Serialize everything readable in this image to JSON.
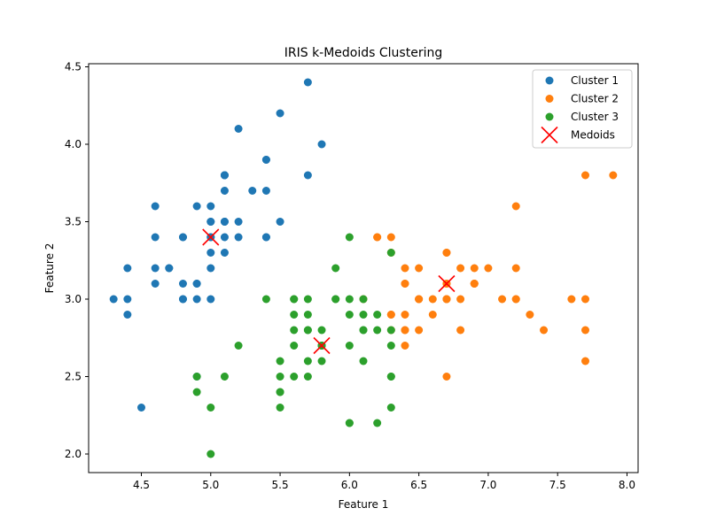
{
  "chart_data": {
    "type": "scatter",
    "title": "IRIS k-Medoids Clustering",
    "xlabel": "Feature 1",
    "ylabel": "Feature 2",
    "xlim": [
      4.12,
      8.08
    ],
    "ylim": [
      1.88,
      4.52
    ],
    "xticks": [
      "4.5",
      "5.0",
      "5.5",
      "6.0",
      "6.5",
      "7.0",
      "7.5",
      "8.0"
    ],
    "yticks": [
      "2.0",
      "2.5",
      "3.0",
      "3.5",
      "4.0",
      "4.5"
    ],
    "grid": false,
    "legend_position": "top-right",
    "series": [
      {
        "name": "Cluster 1",
        "color": "#1f77b4",
        "marker": "circle",
        "points": [
          [
            5.1,
            3.5
          ],
          [
            4.9,
            3.0
          ],
          [
            4.7,
            3.2
          ],
          [
            4.6,
            3.1
          ],
          [
            5.0,
            3.6
          ],
          [
            5.4,
            3.9
          ],
          [
            4.6,
            3.4
          ],
          [
            5.0,
            3.4
          ],
          [
            4.4,
            2.9
          ],
          [
            4.9,
            3.1
          ],
          [
            5.4,
            3.7
          ],
          [
            4.8,
            3.4
          ],
          [
            4.8,
            3.0
          ],
          [
            4.3,
            3.0
          ],
          [
            5.8,
            4.0
          ],
          [
            5.7,
            4.4
          ],
          [
            5.4,
            3.9
          ],
          [
            5.1,
            3.5
          ],
          [
            5.7,
            3.8
          ],
          [
            5.1,
            3.8
          ],
          [
            5.4,
            3.4
          ],
          [
            5.1,
            3.7
          ],
          [
            4.6,
            3.6
          ],
          [
            5.1,
            3.3
          ],
          [
            4.8,
            3.4
          ],
          [
            5.0,
            3.0
          ],
          [
            5.0,
            3.4
          ],
          [
            5.2,
            3.5
          ],
          [
            5.2,
            3.4
          ],
          [
            4.7,
            3.2
          ],
          [
            4.8,
            3.1
          ],
          [
            5.4,
            3.4
          ],
          [
            5.2,
            4.1
          ],
          [
            5.5,
            4.2
          ],
          [
            4.9,
            3.1
          ],
          [
            5.0,
            3.2
          ],
          [
            5.5,
            3.5
          ],
          [
            4.9,
            3.6
          ],
          [
            4.4,
            3.0
          ],
          [
            5.1,
            3.4
          ],
          [
            5.0,
            3.5
          ],
          [
            4.5,
            2.3
          ],
          [
            4.4,
            3.2
          ],
          [
            5.0,
            3.5
          ],
          [
            5.1,
            3.8
          ],
          [
            4.8,
            3.0
          ],
          [
            5.1,
            3.8
          ],
          [
            4.6,
            3.2
          ],
          [
            5.3,
            3.7
          ],
          [
            5.0,
            3.3
          ],
          [
            4.9,
            2.5
          ]
        ]
      },
      {
        "name": "Cluster 2",
        "color": "#ff7f0e",
        "marker": "circle",
        "points": [
          [
            7.0,
            3.2
          ],
          [
            6.4,
            3.2
          ],
          [
            6.9,
            3.1
          ],
          [
            6.5,
            2.8
          ],
          [
            6.3,
            3.3
          ],
          [
            6.6,
            2.9
          ],
          [
            6.7,
            3.1
          ],
          [
            6.4,
            2.9
          ],
          [
            6.6,
            3.0
          ],
          [
            6.8,
            2.8
          ],
          [
            6.7,
            3.0
          ],
          [
            6.3,
            2.9
          ],
          [
            6.3,
            2.8
          ],
          [
            6.7,
            3.1
          ],
          [
            6.4,
            2.7
          ],
          [
            6.5,
            3.0
          ],
          [
            6.2,
            3.4
          ],
          [
            6.4,
            3.1
          ],
          [
            6.9,
            3.1
          ],
          [
            6.8,
            3.2
          ],
          [
            6.7,
            3.3
          ],
          [
            6.7,
            3.0
          ],
          [
            6.5,
            3.0
          ],
          [
            6.5,
            3.2
          ],
          [
            6.3,
            3.4
          ],
          [
            7.1,
            3.0
          ],
          [
            6.3,
            2.9
          ],
          [
            7.6,
            3.0
          ],
          [
            7.3,
            2.9
          ],
          [
            6.7,
            2.5
          ],
          [
            7.2,
            3.6
          ],
          [
            6.4,
            2.8
          ],
          [
            7.7,
            3.8
          ],
          [
            7.7,
            2.6
          ],
          [
            6.9,
            3.2
          ],
          [
            7.7,
            2.8
          ],
          [
            7.2,
            3.2
          ],
          [
            6.4,
            2.8
          ],
          [
            7.2,
            3.0
          ],
          [
            7.4,
            2.8
          ],
          [
            7.9,
            3.8
          ],
          [
            7.7,
            3.0
          ],
          [
            6.1,
            3.0
          ],
          [
            6.4,
            3.1
          ],
          [
            6.9,
            3.1
          ],
          [
            6.8,
            3.0
          ],
          [
            6.7,
            3.3
          ],
          [
            6.7,
            3.0
          ],
          [
            6.5,
            3.0
          ],
          [
            6.2,
            3.4
          ],
          [
            7.2,
            3.0
          ]
        ]
      },
      {
        "name": "Cluster 3",
        "color": "#2ca02c",
        "marker": "circle",
        "points": [
          [
            5.5,
            2.3
          ],
          [
            5.7,
            2.8
          ],
          [
            6.3,
            3.3
          ],
          [
            4.9,
            2.4
          ],
          [
            5.2,
            2.7
          ],
          [
            5.0,
            2.0
          ],
          [
            5.9,
            3.0
          ],
          [
            6.0,
            2.2
          ],
          [
            6.1,
            2.9
          ],
          [
            5.6,
            2.9
          ],
          [
            5.6,
            3.0
          ],
          [
            5.8,
            2.7
          ],
          [
            6.2,
            2.2
          ],
          [
            5.6,
            2.5
          ],
          [
            5.9,
            3.2
          ],
          [
            6.1,
            2.8
          ],
          [
            6.3,
            2.5
          ],
          [
            6.1,
            2.8
          ],
          [
            5.7,
            2.6
          ],
          [
            6.0,
            2.9
          ],
          [
            5.5,
            2.4
          ],
          [
            5.5,
            2.4
          ],
          [
            5.8,
            2.7
          ],
          [
            6.0,
            2.7
          ],
          [
            5.4,
            3.0
          ],
          [
            6.0,
            3.4
          ],
          [
            6.3,
            2.3
          ],
          [
            5.6,
            3.0
          ],
          [
            5.5,
            2.5
          ],
          [
            5.5,
            2.6
          ],
          [
            6.1,
            3.0
          ],
          [
            5.8,
            2.6
          ],
          [
            5.0,
            2.3
          ],
          [
            5.6,
            2.7
          ],
          [
            5.7,
            3.0
          ],
          [
            5.7,
            2.9
          ],
          [
            6.2,
            2.9
          ],
          [
            5.1,
            2.5
          ],
          [
            5.7,
            2.8
          ],
          [
            4.9,
            2.5
          ],
          [
            5.7,
            2.5
          ],
          [
            5.8,
            2.8
          ],
          [
            6.0,
            2.2
          ],
          [
            5.6,
            2.8
          ],
          [
            6.3,
            2.7
          ],
          [
            6.2,
            2.8
          ],
          [
            6.1,
            2.6
          ],
          [
            6.3,
            2.8
          ],
          [
            6.0,
            3.0
          ],
          [
            5.8,
            2.7
          ],
          [
            6.3,
            2.5
          ],
          [
            5.9,
            3.0
          ]
        ]
      },
      {
        "name": "Medoids",
        "color": "#ff0000",
        "marker": "x",
        "points": [
          [
            5.0,
            3.4
          ],
          [
            6.7,
            3.1
          ],
          [
            5.8,
            2.7
          ]
        ]
      }
    ]
  }
}
